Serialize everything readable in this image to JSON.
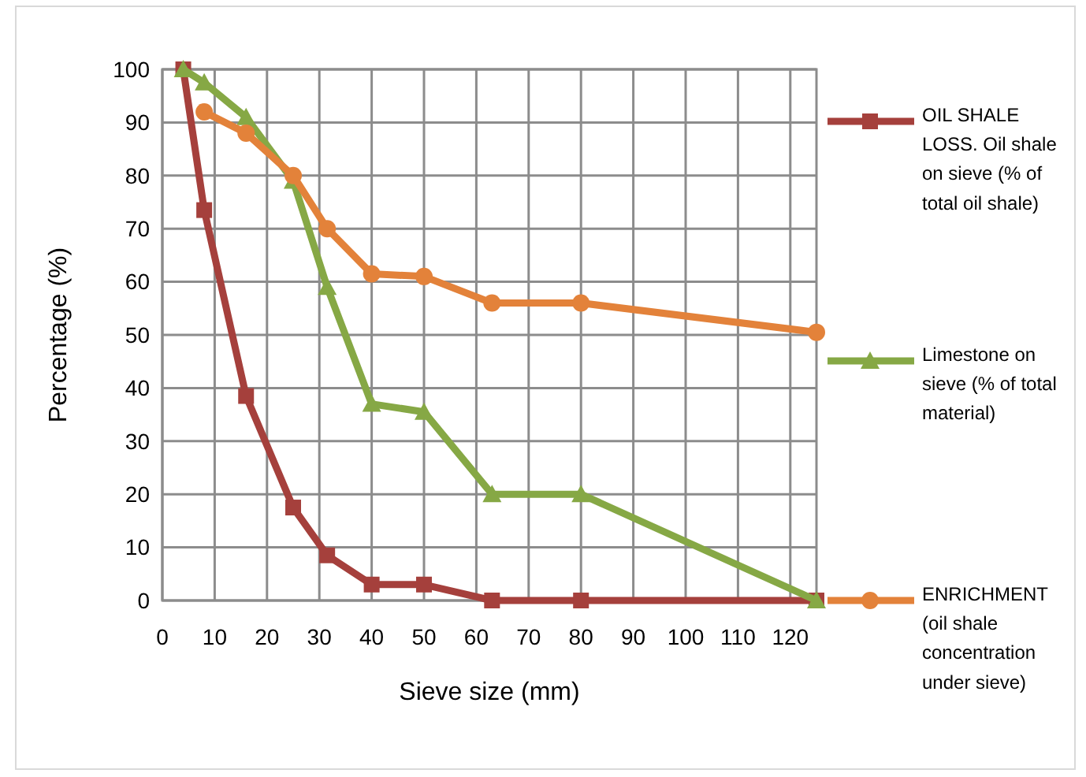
{
  "chart_data": {
    "type": "line",
    "xlabel": "Sieve size (mm)",
    "ylabel": "Percentage (%)",
    "xlim": [
      0,
      125
    ],
    "xticks": [
      0,
      10,
      20,
      30,
      40,
      50,
      60,
      70,
      80,
      90,
      100,
      110,
      120
    ],
    "ylim": [
      0,
      100
    ],
    "yticks": [
      0,
      10,
      20,
      30,
      40,
      50,
      60,
      70,
      80,
      90,
      100
    ],
    "grid": true,
    "legend": "right",
    "line_style": "solid",
    "series": [
      {
        "name": "OIL SHALE LOSS. Oil shale on sieve (% of total oil shale)",
        "color": "#a5403c",
        "marker": "square",
        "x": [
          4,
          8,
          16,
          25,
          31.5,
          40,
          50,
          63,
          80,
          125
        ],
        "values": [
          100,
          73.5,
          38.5,
          17.5,
          8.5,
          3,
          3,
          0,
          0,
          0
        ]
      },
      {
        "name": "Limestone on sieve (% of total material)",
        "color": "#86a845",
        "marker": "triangle",
        "x": [
          4,
          8,
          16,
          25,
          31.5,
          40,
          50,
          63,
          80,
          125
        ],
        "values": [
          100,
          97.5,
          91,
          79,
          59,
          37,
          35.5,
          20,
          20,
          0
        ]
      },
      {
        "name": "ENRICHMENT (oil shale concentration under sieve)",
        "color": "#e3823a",
        "marker": "circle",
        "x": [
          8,
          16,
          25,
          31.5,
          40,
          50,
          63,
          80,
          125
        ],
        "values": [
          92,
          88,
          80,
          70,
          61.5,
          61,
          56,
          56,
          50.5
        ]
      }
    ]
  }
}
